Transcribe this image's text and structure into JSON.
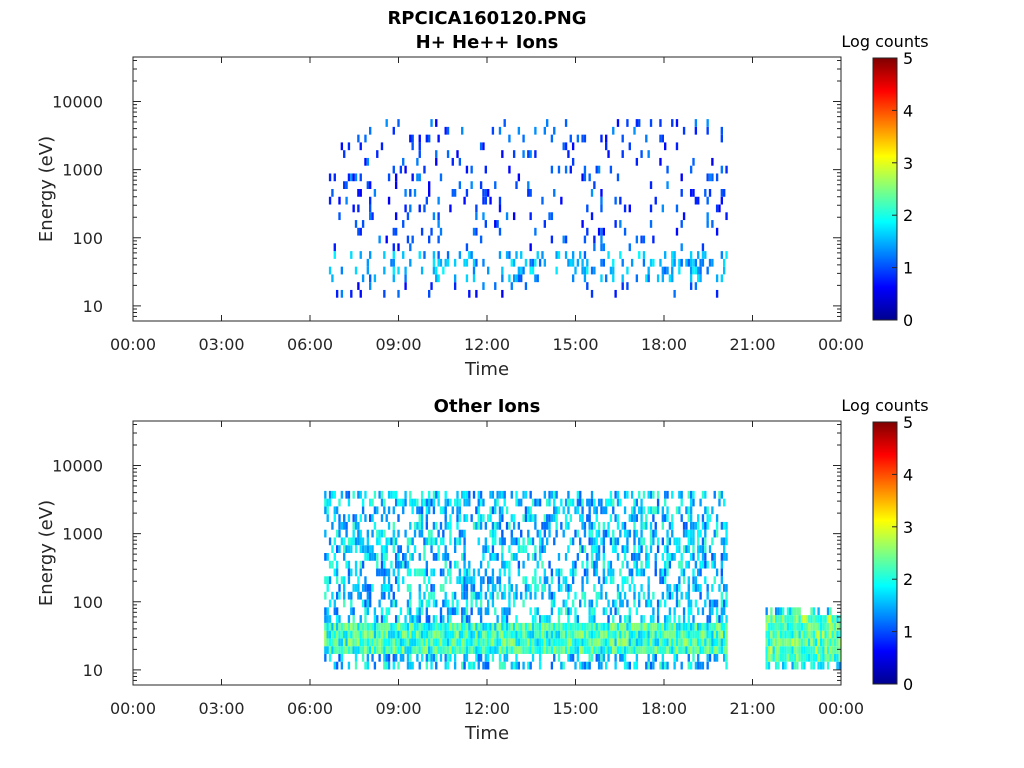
{
  "figure": {
    "title": "RPCICA160120.PNG",
    "colorbar_cmap": "jet",
    "colorbar_label": "Log counts",
    "colorbar_ticks": [
      "0",
      "1",
      "2",
      "3",
      "4",
      "5"
    ],
    "colorbar_range": [
      0,
      5
    ]
  },
  "chart_data": [
    {
      "type": "heatmap",
      "title": "H+ He++ Ions",
      "xlabel": "Time",
      "ylabel": "Energy (eV)",
      "x_unit": "hours",
      "xlim": [
        0,
        24
      ],
      "y_scale": "log",
      "ylim": [
        6,
        45000
      ],
      "xticks": [
        0,
        3,
        6,
        9,
        12,
        15,
        18,
        21,
        24
      ],
      "xtick_labels": [
        "00:00",
        "03:00",
        "06:00",
        "09:00",
        "12:00",
        "15:00",
        "18:00",
        "21:00",
        "00:00"
      ],
      "yticks": [
        10,
        100,
        1000,
        10000
      ],
      "ytick_labels": [
        "10",
        "100",
        "1000",
        "10000"
      ],
      "zlim": [
        0,
        5
      ],
      "segments": [
        {
          "t_start": 6.5,
          "t_end": 20.1,
          "e_min": 12,
          "e_max": 4800,
          "low_band": [
            20,
            60
          ],
          "density": 0.1,
          "level": 0.8,
          "level_spread": 0.8
        }
      ]
    },
    {
      "type": "heatmap",
      "title": "Other Ions",
      "xlabel": "Time",
      "ylabel": "Energy (eV)",
      "x_unit": "hours",
      "xlim": [
        0,
        24
      ],
      "y_scale": "log",
      "ylim": [
        6,
        45000
      ],
      "xticks": [
        0,
        3,
        6,
        9,
        12,
        15,
        18,
        21,
        24
      ],
      "xtick_labels": [
        "00:00",
        "03:00",
        "06:00",
        "09:00",
        "12:00",
        "15:00",
        "18:00",
        "21:00",
        "00:00"
      ],
      "yticks": [
        10,
        100,
        1000,
        10000
      ],
      "ytick_labels": [
        "10",
        "100",
        "1000",
        "10000"
      ],
      "zlim": [
        0,
        5
      ],
      "segments": [
        {
          "t_start": 6.5,
          "t_end": 20.1,
          "e_min": 8,
          "e_max": 3500,
          "low_band": [
            15,
            45
          ],
          "density": 0.45,
          "level": 1.4,
          "level_spread": 1.2
        },
        {
          "t_start": 21.5,
          "t_end": 24.0,
          "e_min": 8,
          "e_max": 80,
          "low_band": [
            12,
            50
          ],
          "density": 0.6,
          "level": 1.6,
          "level_spread": 1.2
        }
      ]
    }
  ]
}
